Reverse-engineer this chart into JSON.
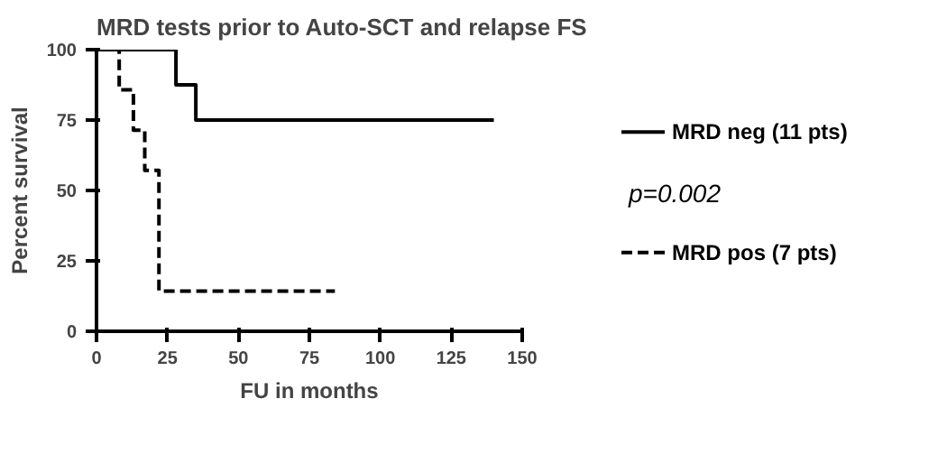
{
  "chart_data": {
    "type": "step",
    "title": "MRD tests prior to Auto-SCT and relapse FS",
    "xlabel": "FU in months",
    "ylabel": "Percent survival",
    "series": [
      {
        "name": "MRD neg (11 pts)",
        "color": "#000000",
        "line_style": "solid",
        "x": [
          0,
          28,
          35,
          140
        ],
        "values": [
          100,
          87.5,
          75,
          75
        ]
      },
      {
        "name": "MRD pos (7 pts)",
        "color": "#000000",
        "line_style": "dashed",
        "x": [
          0,
          8,
          13,
          17,
          22,
          84
        ],
        "values": [
          100,
          85.7,
          71.4,
          57.1,
          14.3,
          14.3
        ]
      }
    ],
    "xlim": [
      0,
      150
    ],
    "ylim": [
      0,
      100
    ],
    "xticks": [
      0,
      25,
      50,
      75,
      100,
      125,
      150
    ],
    "yticks": [
      0,
      25,
      50,
      75,
      100
    ],
    "annotations": [
      "p=0.002"
    ],
    "legend": "right",
    "grid": false,
    "marker": "none"
  }
}
